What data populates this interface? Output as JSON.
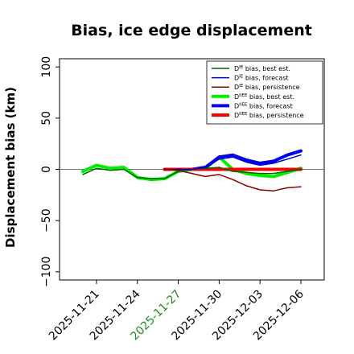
{
  "chart_data": {
    "type": "line",
    "title": "Bias, ice edge displacement",
    "ylabel": "Displacement bias (km)",
    "xlabel": "",
    "ylim": [
      -108,
      108
    ],
    "yticks": [
      -100,
      -50,
      0,
      50,
      100
    ],
    "ytick_labels": [
      "−100",
      "−50",
      "0",
      "50",
      "100"
    ],
    "x_dates": [
      "2025-11-20",
      "2025-11-21",
      "2025-11-22",
      "2025-11-23",
      "2025-11-24",
      "2025-11-25",
      "2025-11-26",
      "2025-11-27",
      "2025-11-28",
      "2025-11-29",
      "2025-11-30",
      "2025-12-01",
      "2025-12-02",
      "2025-12-03",
      "2025-12-04",
      "2025-12-05",
      "2025-12-06"
    ],
    "xticks": [
      {
        "date": "2025-11-21",
        "label": "2025-11-21",
        "color": "#000000"
      },
      {
        "date": "2025-11-24",
        "label": "2025-11-24",
        "color": "#000000"
      },
      {
        "date": "2025-11-27",
        "label": "2025-11-27",
        "color": "#228b22"
      },
      {
        "date": "2025-11-30",
        "label": "2025-11-30",
        "color": "#000000"
      },
      {
        "date": "2025-12-03",
        "label": "2025-12-03",
        "color": "#000000"
      },
      {
        "date": "2025-12-06",
        "label": "2025-12-06",
        "color": "#000000"
      }
    ],
    "legend_position": "top-right",
    "grid": false,
    "series": [
      {
        "name": "D^IE bias, best est.",
        "legend_main": "D",
        "legend_sup": "IE",
        "legend_rest": " bias, best est.",
        "color": "#006400",
        "width": 1.5,
        "x": [
          "2025-11-20",
          "2025-11-21",
          "2025-11-22",
          "2025-11-23",
          "2025-11-24",
          "2025-11-25",
          "2025-11-26",
          "2025-11-27",
          "2025-11-28",
          "2025-11-29",
          "2025-11-30",
          "2025-12-01",
          "2025-12-02",
          "2025-12-03",
          "2025-12-04",
          "2025-12-05",
          "2025-12-06"
        ],
        "y": [
          -5,
          1,
          -1,
          0,
          -8,
          -9,
          -9,
          -2,
          0,
          1,
          2,
          -2,
          -3,
          -4,
          -4,
          -2,
          0
        ]
      },
      {
        "name": "D^IE bias, forecast",
        "legend_main": "D",
        "legend_sup": "IE",
        "legend_rest": " bias, forecast",
        "color": "#0000cd",
        "width": 1.5,
        "x": [
          "2025-11-26",
          "2025-11-27",
          "2025-11-28",
          "2025-11-29",
          "2025-11-30",
          "2025-12-01",
          "2025-12-02",
          "2025-12-03",
          "2025-12-04",
          "2025-12-05",
          "2025-12-06"
        ],
        "y": [
          0,
          0,
          0,
          2,
          10,
          12,
          7,
          4,
          6,
          10,
          14
        ]
      },
      {
        "name": "D^IE bias, persistence",
        "legend_main": "D",
        "legend_sup": "IE",
        "legend_rest": " bias, persistence",
        "color": "#8b0000",
        "width": 1.5,
        "x": [
          "2025-11-26",
          "2025-11-27",
          "2025-11-28",
          "2025-11-29",
          "2025-11-30",
          "2025-12-01",
          "2025-12-02",
          "2025-12-03",
          "2025-12-04",
          "2025-12-05",
          "2025-12-06"
        ],
        "y": [
          0,
          -1,
          -4,
          -7,
          -5,
          -10,
          -16,
          -20,
          -21,
          -18,
          -17
        ]
      },
      {
        "name": "D^IIEE bias, best est.",
        "legend_main": "D",
        "legend_sup": "IIEE",
        "legend_rest": " bias, best est.",
        "color": "#00ee00",
        "width": 4,
        "x": [
          "2025-11-20",
          "2025-11-21",
          "2025-11-22",
          "2025-11-23",
          "2025-11-24",
          "2025-11-25",
          "2025-11-26",
          "2025-11-27",
          "2025-11-28",
          "2025-11-29",
          "2025-11-30",
          "2025-12-01",
          "2025-12-02",
          "2025-12-03",
          "2025-12-04",
          "2025-12-05",
          "2025-12-06"
        ],
        "y": [
          -2,
          4,
          1,
          2,
          -8,
          -10,
          -9,
          -2,
          0,
          1,
          12,
          0,
          -4,
          -6,
          -7,
          -3,
          1
        ]
      },
      {
        "name": "D^IIEE bias, forecast",
        "legend_main": "D",
        "legend_sup": "IIEE",
        "legend_rest": " bias, forecast",
        "color": "#0000ee",
        "width": 4,
        "x": [
          "2025-11-26",
          "2025-11-27",
          "2025-11-28",
          "2025-11-29",
          "2025-11-30",
          "2025-12-01",
          "2025-12-02",
          "2025-12-03",
          "2025-12-04",
          "2025-12-05",
          "2025-12-06"
        ],
        "y": [
          0,
          0,
          0,
          2,
          12,
          14,
          9,
          6,
          8,
          14,
          18
        ]
      },
      {
        "name": "D^IIEE bias, persistence",
        "legend_main": "D",
        "legend_sup": "IIEE",
        "legend_rest": " bias, persistence",
        "color": "#ff0000",
        "width": 4,
        "x": [
          "2025-11-26",
          "2025-11-27",
          "2025-11-28",
          "2025-11-29",
          "2025-11-30",
          "2025-12-01",
          "2025-12-02",
          "2025-12-03",
          "2025-12-04",
          "2025-12-05",
          "2025-12-06"
        ],
        "y": [
          0,
          0,
          0,
          0,
          0,
          0,
          0,
          0,
          0,
          0,
          0
        ]
      }
    ]
  }
}
